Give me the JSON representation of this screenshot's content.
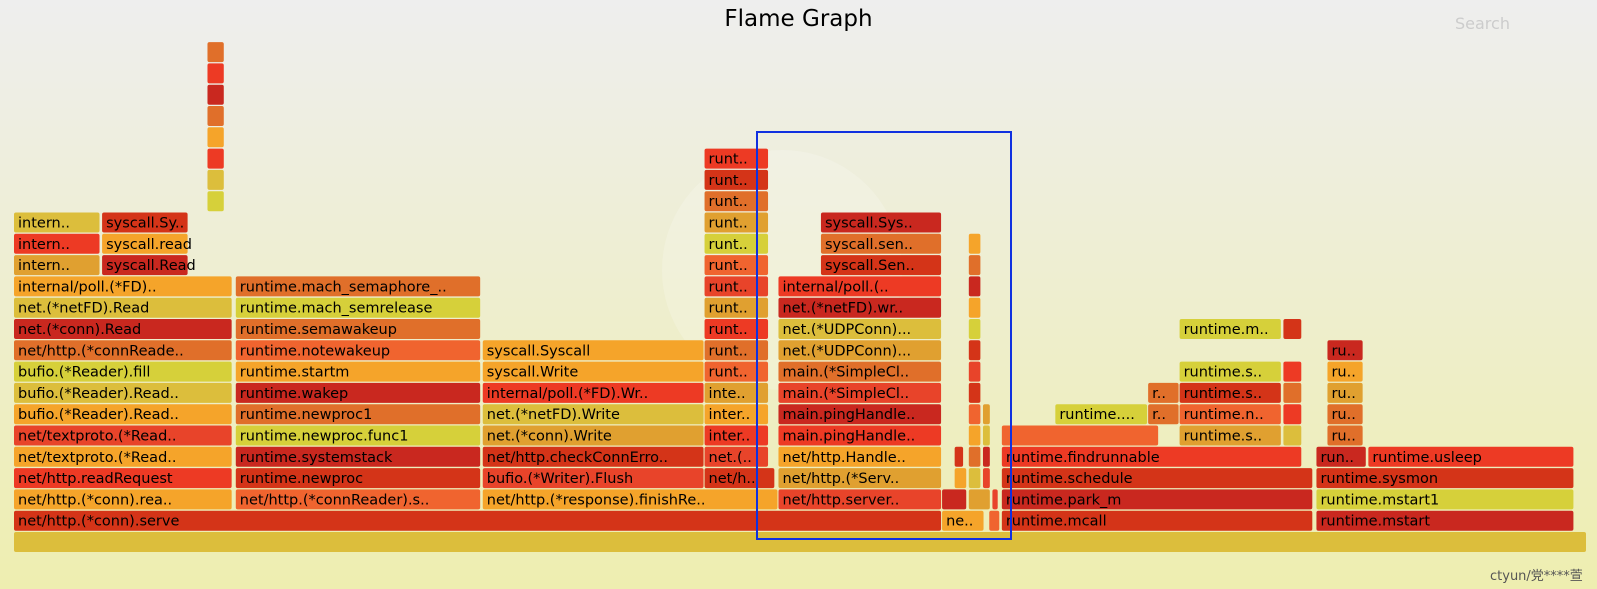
{
  "header": {
    "title": "Flame Graph",
    "search_label": "Search",
    "watermark": "ctyun/党****萱"
  },
  "colors": [
    "#d43418",
    "#e8442a",
    "#f0642f",
    "#e0a030",
    "#dcbe3c",
    "#c9281f",
    "#e06f2a",
    "#f5a42a",
    "#d6d03a",
    "#ed3a24"
  ],
  "chart_data": {
    "type": "flame",
    "title": "Flame Graph",
    "rows": [
      [
        {
          "x": 0.0,
          "w": 100.0,
          "label": "",
          "c": 4
        }
      ],
      [
        {
          "x": 0.0,
          "w": 59.0,
          "label": "net/http.(*conn).serve",
          "c": 0
        },
        {
          "x": 59.0,
          "w": 2.7,
          "label": "ne..",
          "c": 7
        },
        {
          "x": 62.0,
          "w": 0.7,
          "label": "",
          "c": 2
        },
        {
          "x": 62.8,
          "w": 19.8,
          "label": "runtime.mcall",
          "c": 0
        },
        {
          "x": 82.8,
          "w": 16.4,
          "label": "runtime.mstart",
          "c": 5
        }
      ],
      [
        {
          "x": 0.0,
          "w": 13.9,
          "label": "net/http.(*conn).rea..",
          "c": 7
        },
        {
          "x": 14.1,
          "w": 15.6,
          "label": "net/http.(*connReader).s..",
          "c": 2
        },
        {
          "x": 29.8,
          "w": 18.8,
          "label": "net/http.(*response).finishRe..",
          "c": 7
        },
        {
          "x": 48.6,
          "w": 10.4,
          "label": "net/http.server..",
          "c": 1
        },
        {
          "x": 59.0,
          "w": 1.6,
          "label": "",
          "c": 5
        },
        {
          "x": 60.7,
          "w": 1.4,
          "label": "",
          "c": 3
        },
        {
          "x": 62.2,
          "w": 0.4,
          "label": "",
          "c": 1
        },
        {
          "x": 62.8,
          "w": 19.8,
          "label": "runtime.park_m",
          "c": 5
        },
        {
          "x": 82.8,
          "w": 16.4,
          "label": "runtime.mstart1",
          "c": 8
        }
      ],
      [
        {
          "x": 0.0,
          "w": 13.9,
          "label": "net/http.readRequest",
          "c": 9
        },
        {
          "x": 14.1,
          "w": 15.6,
          "label": "runtime.newproc",
          "c": 0
        },
        {
          "x": 29.8,
          "w": 14.1,
          "label": "bufio.(*Writer).Flush",
          "c": 1
        },
        {
          "x": 43.9,
          "w": 4.5,
          "label": "net/h..",
          "c": 0
        },
        {
          "x": 48.6,
          "w": 10.4,
          "label": "net/http.(*Serv..",
          "c": 3
        },
        {
          "x": 59.8,
          "w": 0.8,
          "label": "",
          "c": 7
        },
        {
          "x": 60.7,
          "w": 0.8,
          "label": "",
          "c": 4
        },
        {
          "x": 61.6,
          "w": 0.5,
          "label": "",
          "c": 1
        },
        {
          "x": 62.8,
          "w": 19.8,
          "label": "runtime.schedule",
          "c": 0
        },
        {
          "x": 82.8,
          "w": 16.4,
          "label": "runtime.sysmon",
          "c": 0
        }
      ],
      [
        {
          "x": 0.0,
          "w": 13.9,
          "label": "net/textproto.(*Read..",
          "c": 7
        },
        {
          "x": 14.1,
          "w": 15.6,
          "label": "runtime.systemstack",
          "c": 5
        },
        {
          "x": 29.8,
          "w": 14.1,
          "label": "net/http.checkConnErro..",
          "c": 0
        },
        {
          "x": 43.9,
          "w": 4.1,
          "label": "net.(..",
          "c": 1
        },
        {
          "x": 48.6,
          "w": 10.4,
          "label": "net/http.Handle..",
          "c": 7
        },
        {
          "x": 59.8,
          "w": 0.6,
          "label": "",
          "c": 0
        },
        {
          "x": 60.7,
          "w": 0.8,
          "label": "",
          "c": 6
        },
        {
          "x": 61.6,
          "w": 0.5,
          "label": "",
          "c": 5
        },
        {
          "x": 62.8,
          "w": 19.1,
          "label": "runtime.findrunnable",
          "c": 9
        },
        {
          "x": 82.8,
          "w": 3.2,
          "label": "run..",
          "c": 5
        },
        {
          "x": 86.1,
          "w": 13.1,
          "label": "runtime.usleep",
          "c": 9
        }
      ],
      [
        {
          "x": 0.0,
          "w": 13.9,
          "label": "net/textproto.(*Read..",
          "c": 1
        },
        {
          "x": 14.1,
          "w": 15.6,
          "label": "runtime.newproc.func1",
          "c": 8
        },
        {
          "x": 29.8,
          "w": 14.1,
          "label": "net.(*conn).Write",
          "c": 3
        },
        {
          "x": 43.9,
          "w": 4.1,
          "label": "inter..",
          "c": 9
        },
        {
          "x": 48.6,
          "w": 10.4,
          "label": "main.pingHandle..",
          "c": 9
        },
        {
          "x": 60.7,
          "w": 0.8,
          "label": "",
          "c": 7
        },
        {
          "x": 61.6,
          "w": 0.5,
          "label": "",
          "c": 4
        },
        {
          "x": 62.8,
          "w": 10.0,
          "label": "",
          "c": 2
        },
        {
          "x": 74.1,
          "w": 6.5,
          "label": "runtime.s..",
          "c": 3
        },
        {
          "x": 80.7,
          "w": 1.2,
          "label": "",
          "c": 4
        },
        {
          "x": 83.5,
          "w": 2.3,
          "label": "ru..",
          "c": 6
        }
      ],
      [
        {
          "x": 0.0,
          "w": 13.9,
          "label": "bufio.(*Reader).Read..",
          "c": 7
        },
        {
          "x": 14.1,
          "w": 15.6,
          "label": "runtime.newproc1",
          "c": 6
        },
        {
          "x": 29.8,
          "w": 14.1,
          "label": "net.(*netFD).Write",
          "c": 4
        },
        {
          "x": 43.9,
          "w": 4.1,
          "label": "inter..",
          "c": 7
        },
        {
          "x": 48.6,
          "w": 10.4,
          "label": "main.pingHandle..",
          "c": 5
        },
        {
          "x": 60.7,
          "w": 0.8,
          "label": "",
          "c": 2
        },
        {
          "x": 61.6,
          "w": 0.5,
          "label": "",
          "c": 3
        },
        {
          "x": 66.2,
          "w": 5.9,
          "label": "runtime....",
          "c": 8
        },
        {
          "x": 72.1,
          "w": 2.0,
          "label": "r..",
          "c": 6
        },
        {
          "x": 74.1,
          "w": 6.5,
          "label": "runtime.n..",
          "c": 2
        },
        {
          "x": 80.7,
          "w": 1.2,
          "label": "",
          "c": 9
        },
        {
          "x": 83.5,
          "w": 2.3,
          "label": "ru..",
          "c": 6
        }
      ],
      [
        {
          "x": 0.0,
          "w": 13.9,
          "label": "bufio.(*Reader).Read..",
          "c": 4
        },
        {
          "x": 14.1,
          "w": 15.6,
          "label": "runtime.wakep",
          "c": 5
        },
        {
          "x": 29.8,
          "w": 14.1,
          "label": "internal/poll.(*FD).Wr..",
          "c": 9
        },
        {
          "x": 43.9,
          "w": 4.1,
          "label": "inte..",
          "c": 3
        },
        {
          "x": 48.6,
          "w": 10.4,
          "label": "main.(*SimpleCl..",
          "c": 1
        },
        {
          "x": 60.7,
          "w": 0.8,
          "label": "",
          "c": 0
        },
        {
          "x": 72.1,
          "w": 2.0,
          "label": "r..",
          "c": 6
        },
        {
          "x": 74.1,
          "w": 6.5,
          "label": "runtime.s..",
          "c": 0
        },
        {
          "x": 80.7,
          "w": 1.2,
          "label": "",
          "c": 6
        },
        {
          "x": 83.5,
          "w": 2.3,
          "label": "ru..",
          "c": 3
        }
      ],
      [
        {
          "x": 0.0,
          "w": 13.9,
          "label": "bufio.(*Reader).fill",
          "c": 8
        },
        {
          "x": 14.1,
          "w": 15.6,
          "label": "runtime.startm",
          "c": 7
        },
        {
          "x": 29.8,
          "w": 14.1,
          "label": "syscall.Write",
          "c": 7
        },
        {
          "x": 43.9,
          "w": 4.1,
          "label": "runt..",
          "c": 2
        },
        {
          "x": 48.6,
          "w": 10.4,
          "label": "main.(*SimpleCl..",
          "c": 6
        },
        {
          "x": 60.7,
          "w": 0.8,
          "label": "",
          "c": 1
        },
        {
          "x": 74.1,
          "w": 6.5,
          "label": "runtime.s..",
          "c": 8
        },
        {
          "x": 80.7,
          "w": 1.2,
          "label": "",
          "c": 9
        },
        {
          "x": 83.5,
          "w": 2.3,
          "label": "ru..",
          "c": 7
        }
      ],
      [
        {
          "x": 0.0,
          "w": 13.9,
          "label": "net/http.(*connReade..",
          "c": 6
        },
        {
          "x": 14.1,
          "w": 15.6,
          "label": "runtime.notewakeup",
          "c": 2
        },
        {
          "x": 29.8,
          "w": 14.1,
          "label": "syscall.Syscall",
          "c": 7
        },
        {
          "x": 43.9,
          "w": 4.1,
          "label": "runt..",
          "c": 6
        },
        {
          "x": 48.6,
          "w": 10.4,
          "label": "net.(*UDPConn)...",
          "c": 3
        },
        {
          "x": 60.7,
          "w": 0.8,
          "label": "",
          "c": 0
        },
        {
          "x": 83.5,
          "w": 2.3,
          "label": "ru..",
          "c": 5
        }
      ],
      [
        {
          "x": 0.0,
          "w": 13.9,
          "label": "net.(*conn).Read",
          "c": 5
        },
        {
          "x": 14.1,
          "w": 15.6,
          "label": "runtime.semawakeup",
          "c": 6
        },
        {
          "x": 43.9,
          "w": 4.1,
          "label": "runt..",
          "c": 9
        },
        {
          "x": 48.6,
          "w": 10.4,
          "label": "net.(*UDPConn)...",
          "c": 4
        },
        {
          "x": 60.7,
          "w": 0.8,
          "label": "",
          "c": 8
        },
        {
          "x": 74.1,
          "w": 6.5,
          "label": "runtime.m..",
          "c": 8
        },
        {
          "x": 80.7,
          "w": 1.2,
          "label": "",
          "c": 0
        }
      ],
      [
        {
          "x": 0.0,
          "w": 13.9,
          "label": "net.(*netFD).Read",
          "c": 4
        },
        {
          "x": 14.1,
          "w": 15.6,
          "label": "runtime.mach_semrelease",
          "c": 8
        },
        {
          "x": 43.9,
          "w": 4.1,
          "label": "runt..",
          "c": 3
        },
        {
          "x": 48.6,
          "w": 10.4,
          "label": "net.(*netFD).wr..",
          "c": 5
        },
        {
          "x": 60.7,
          "w": 0.8,
          "label": "",
          "c": 7
        }
      ],
      [
        {
          "x": 0.0,
          "w": 13.9,
          "label": "internal/poll.(*FD)..",
          "c": 7
        },
        {
          "x": 14.1,
          "w": 15.6,
          "label": "runtime.mach_semaphore_..",
          "c": 6
        },
        {
          "x": 43.9,
          "w": 4.1,
          "label": "runt..",
          "c": 1
        },
        {
          "x": 48.6,
          "w": 10.4,
          "label": "internal/poll.(..",
          "c": 9
        },
        {
          "x": 60.7,
          "w": 0.8,
          "label": "",
          "c": 5
        }
      ],
      [
        {
          "x": 0.0,
          "w": 5.5,
          "label": "intern..",
          "c": 3
        },
        {
          "x": 5.6,
          "w": 5.5,
          "label": "syscall.Read",
          "c": 5
        },
        {
          "x": 43.9,
          "w": 4.1,
          "label": "runt..",
          "c": 2
        },
        {
          "x": 51.3,
          "w": 7.7,
          "label": "syscall.Sen..",
          "c": 0
        },
        {
          "x": 60.7,
          "w": 0.8,
          "label": "",
          "c": 6
        }
      ],
      [
        {
          "x": 0.0,
          "w": 5.5,
          "label": "intern..",
          "c": 9
        },
        {
          "x": 5.6,
          "w": 5.5,
          "label": "syscall.read",
          "c": 7
        },
        {
          "x": 43.9,
          "w": 4.1,
          "label": "runt..",
          "c": 8
        },
        {
          "x": 51.3,
          "w": 7.7,
          "label": "syscall.sen..",
          "c": 6
        },
        {
          "x": 60.7,
          "w": 0.8,
          "label": "",
          "c": 7
        }
      ],
      [
        {
          "x": 0.0,
          "w": 5.5,
          "label": "intern..",
          "c": 4
        },
        {
          "x": 5.6,
          "w": 5.5,
          "label": "syscall.Sy..",
          "c": 0
        },
        {
          "x": 43.9,
          "w": 4.1,
          "label": "runt..",
          "c": 3
        },
        {
          "x": 51.3,
          "w": 7.7,
          "label": "syscall.Sys..",
          "c": 5
        }
      ],
      [
        {
          "x": 12.3,
          "w": 1.1,
          "label": "",
          "c": 8
        },
        {
          "x": 43.9,
          "w": 4.1,
          "label": "runt..",
          "c": 6
        }
      ],
      [
        {
          "x": 12.3,
          "w": 1.1,
          "label": "",
          "c": 4
        },
        {
          "x": 43.9,
          "w": 4.1,
          "label": "runt..",
          "c": 0
        }
      ],
      [
        {
          "x": 12.3,
          "w": 1.1,
          "label": "",
          "c": 9
        },
        {
          "x": 43.9,
          "w": 4.1,
          "label": "runt..",
          "c": 9
        }
      ],
      [
        {
          "x": 12.3,
          "w": 1.1,
          "label": "",
          "c": 7
        }
      ],
      [
        {
          "x": 12.3,
          "w": 1.1,
          "label": "",
          "c": 6
        }
      ],
      [
        {
          "x": 12.3,
          "w": 1.1,
          "label": "",
          "c": 5
        }
      ],
      [
        {
          "x": 12.3,
          "w": 1.1,
          "label": "",
          "c": 9
        }
      ],
      [
        {
          "x": 12.3,
          "w": 1.1,
          "label": "",
          "c": 6
        }
      ]
    ]
  }
}
